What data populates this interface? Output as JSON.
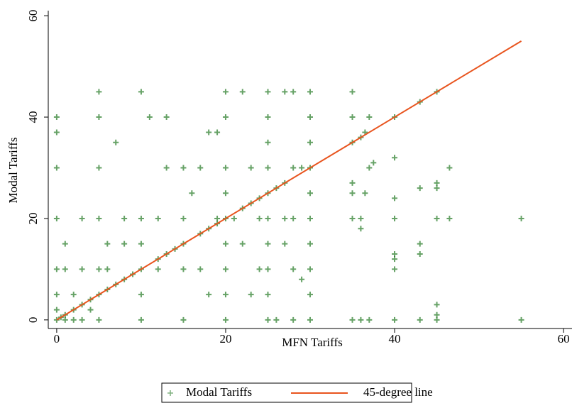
{
  "chart_data": {
    "type": "scatter",
    "x_label": "MFN Tariffs",
    "y_label": "Modal Tariffs",
    "xlim": [
      -1,
      61
    ],
    "ylim": [
      -1.7,
      61
    ],
    "xticks": [
      0,
      20,
      40,
      60
    ],
    "yticks": [
      0,
      20,
      40,
      60
    ],
    "grid": false,
    "legend": "bottom",
    "series": [
      {
        "name": "Modal Tariffs",
        "type": "scatter",
        "color": "#006400",
        "x": [
          35,
          35,
          35,
          36,
          36.5,
          37,
          37,
          37.5,
          36.5,
          35,
          35,
          35,
          36,
          36,
          35,
          36,
          37,
          40,
          40,
          40,
          40,
          40,
          40,
          40,
          40,
          43,
          43,
          43,
          43,
          45,
          45,
          45,
          45,
          45,
          45,
          45,
          46.5,
          46.5,
          55,
          55,
          30,
          30,
          30,
          30,
          30,
          30,
          30,
          30,
          30,
          30,
          28,
          27,
          28,
          27,
          26,
          29,
          27,
          28,
          28,
          29,
          25,
          25,
          25,
          25,
          25,
          25,
          25,
          25,
          25,
          25,
          24,
          23,
          22,
          22,
          23,
          24,
          24,
          23,
          22,
          28,
          20,
          20,
          20,
          20,
          20,
          20,
          20,
          20,
          20,
          19,
          18,
          17,
          19,
          18,
          19,
          21,
          17,
          18,
          16,
          17,
          15,
          15,
          15,
          15,
          15,
          14,
          13,
          13,
          13,
          12,
          12,
          12,
          11,
          10,
          10,
          10,
          10,
          10,
          10,
          9,
          8,
          8,
          8,
          7,
          7,
          6,
          6,
          6,
          5,
          5,
          5,
          5,
          5,
          5,
          5,
          4,
          4,
          3,
          3,
          3,
          2,
          2,
          1,
          1,
          1,
          0,
          0,
          0,
          0,
          0,
          0,
          0,
          0,
          1,
          2,
          3,
          0.5,
          26,
          27,
          43
        ],
        "values": [
          45,
          40,
          35,
          36,
          37,
          40,
          30,
          31,
          25,
          27,
          25,
          20,
          20,
          18,
          0,
          0,
          0,
          40,
          32,
          24,
          20,
          13,
          12,
          10,
          0,
          43,
          15,
          13,
          0,
          45,
          27,
          26,
          20,
          3,
          1,
          0,
          30,
          20,
          20,
          0,
          45,
          40,
          35,
          30,
          25,
          20,
          15,
          10,
          5,
          0,
          45,
          45,
          30,
          27,
          26,
          30,
          20,
          20,
          10,
          8,
          45,
          40,
          35,
          30,
          25,
          20,
          15,
          10,
          5,
          0,
          24,
          23,
          22,
          45,
          30,
          20,
          10,
          5,
          15,
          0,
          45,
          40,
          30,
          25,
          20,
          15,
          10,
          5,
          0,
          19,
          18,
          17,
          37,
          37,
          20,
          20,
          10,
          5,
          25,
          30,
          15,
          30,
          20,
          10,
          0,
          14,
          13,
          30,
          40,
          12,
          20,
          10,
          40,
          10,
          45,
          20,
          15,
          5,
          0,
          9,
          8,
          20,
          15,
          7,
          35,
          6,
          15,
          10,
          5,
          45,
          40,
          30,
          20,
          10,
          0,
          4,
          2,
          3,
          20,
          10,
          2,
          5,
          1,
          10,
          15,
          0,
          40,
          37,
          30,
          20,
          10,
          5,
          2,
          0,
          0,
          0,
          0.5,
          0,
          15,
          26
        ]
      },
      {
        "name": "45-degree line",
        "type": "line",
        "color": "#e8541e",
        "x": [
          0,
          55
        ],
        "values": [
          0,
          55
        ]
      }
    ]
  }
}
